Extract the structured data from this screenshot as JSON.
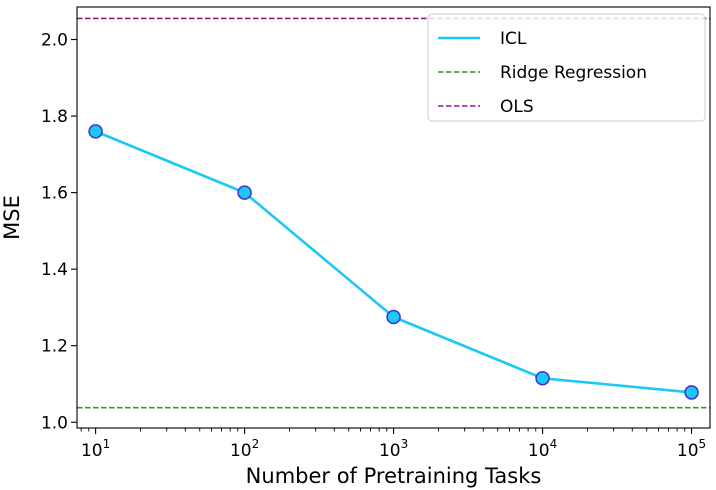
{
  "chart_data": {
    "type": "line",
    "title": "",
    "xlabel": "Number of Pretraining Tasks",
    "ylabel": "MSE",
    "xscale": "log",
    "xlim": [
      7.5,
      133000
    ],
    "ylim": [
      0.985,
      2.085
    ],
    "x_ticks": [
      {
        "base": "10",
        "exp": "1",
        "value": 10
      },
      {
        "base": "10",
        "exp": "2",
        "value": 100
      },
      {
        "base": "10",
        "exp": "3",
        "value": 1000
      },
      {
        "base": "10",
        "exp": "4",
        "value": 10000
      },
      {
        "base": "10",
        "exp": "5",
        "value": 100000
      }
    ],
    "y_ticks": [
      {
        "label": "1.0",
        "value": 1.0
      },
      {
        "label": "1.2",
        "value": 1.2
      },
      {
        "label": "1.4",
        "value": 1.4
      },
      {
        "label": "1.6",
        "value": 1.6
      },
      {
        "label": "1.8",
        "value": 1.8
      },
      {
        "label": "2.0",
        "value": 2.0
      }
    ],
    "series": [
      {
        "name": "ICL",
        "style": "solid-marker",
        "color": "#1ec8f5",
        "marker_edge": "#3a3ad6",
        "x": [
          10,
          100,
          1000,
          10000,
          100000
        ],
        "y": [
          1.76,
          1.6,
          1.275,
          1.115,
          1.078
        ]
      },
      {
        "name": "Ridge Regression",
        "style": "dashed-hline",
        "color": "#2a9a2a",
        "y": 1.038
      },
      {
        "name": "OLS",
        "style": "dashed-hline",
        "color": "#8e1a8e",
        "y": 2.055
      }
    ],
    "legend": {
      "position": "top-right"
    }
  }
}
